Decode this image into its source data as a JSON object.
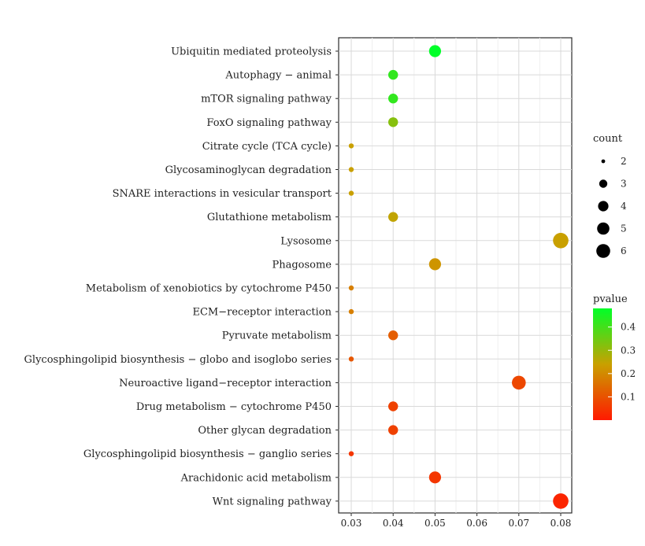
{
  "chart_data": {
    "type": "scatter",
    "title": "",
    "xlabel": "",
    "ylabel": "",
    "xlim": [
      0.03,
      0.08
    ],
    "x_ticks": [
      0.03,
      0.04,
      0.05,
      0.06,
      0.07,
      0.08
    ],
    "x_tick_labels": [
      "0.03",
      "0.04",
      "0.05",
      "0.06",
      "0.07",
      "0.08"
    ],
    "grid": true,
    "categories": [
      "Ubiquitin mediated proteolysis",
      "Autophagy − animal",
      "mTOR signaling pathway",
      "FoxO signaling pathway",
      "Citrate cycle (TCA cycle)",
      "Glycosaminoglycan degradation",
      "SNARE interactions in vesicular transport",
      "Glutathione metabolism",
      "Lysosome",
      "Phagosome",
      "Metabolism of xenobiotics by cytochrome P450",
      "ECM−receptor interaction",
      "Pyruvate metabolism",
      "Glycosphingolipid biosynthesis − globo and isoglobo series",
      "Neuroactive ligand−receptor interaction",
      "Drug metabolism − cytochrome P450",
      "Other glycan degradation",
      "Glycosphingolipid biosynthesis − ganglio series",
      "Arachidonic acid metabolism",
      "Wnt signaling pathway"
    ],
    "points": [
      {
        "category": "Ubiquitin mediated proteolysis",
        "x": 0.05,
        "count": 4,
        "pvalue": 0.48
      },
      {
        "category": "Autophagy − animal",
        "x": 0.04,
        "count": 3,
        "pvalue": 0.42
      },
      {
        "category": "mTOR signaling pathway",
        "x": 0.04,
        "count": 3,
        "pvalue": 0.42
      },
      {
        "category": "FoxO signaling pathway",
        "x": 0.04,
        "count": 3,
        "pvalue": 0.32
      },
      {
        "category": "Citrate cycle (TCA cycle)",
        "x": 0.03,
        "count": 2,
        "pvalue": 0.24
      },
      {
        "category": "Glycosaminoglycan degradation",
        "x": 0.03,
        "count": 2,
        "pvalue": 0.24
      },
      {
        "category": "SNARE interactions in vesicular transport",
        "x": 0.03,
        "count": 2,
        "pvalue": 0.24
      },
      {
        "category": "Glutathione metabolism",
        "x": 0.04,
        "count": 3,
        "pvalue": 0.25
      },
      {
        "category": "Lysosome",
        "x": 0.08,
        "count": 6,
        "pvalue": 0.24
      },
      {
        "category": "Phagosome",
        "x": 0.05,
        "count": 4,
        "pvalue": 0.22
      },
      {
        "category": "Metabolism of xenobiotics by cytochrome P450",
        "x": 0.03,
        "count": 2,
        "pvalue": 0.18
      },
      {
        "category": "ECM−receptor interaction",
        "x": 0.03,
        "count": 2,
        "pvalue": 0.18
      },
      {
        "category": "Pyruvate metabolism",
        "x": 0.04,
        "count": 3,
        "pvalue": 0.12
      },
      {
        "category": "Glycosphingolipid biosynthesis − globo and isoglobo series",
        "x": 0.03,
        "count": 2,
        "pvalue": 0.11
      },
      {
        "category": "Neuroactive ligand−receptor interaction",
        "x": 0.07,
        "count": 5,
        "pvalue": 0.08
      },
      {
        "category": "Drug metabolism − cytochrome P450",
        "x": 0.04,
        "count": 3,
        "pvalue": 0.07
      },
      {
        "category": "Other glycan degradation",
        "x": 0.04,
        "count": 3,
        "pvalue": 0.07
      },
      {
        "category": "Glycosphingolipid biosynthesis − ganglio series",
        "x": 0.03,
        "count": 2,
        "pvalue": 0.05
      },
      {
        "category": "Arachidonic acid metabolism",
        "x": 0.05,
        "count": 4,
        "pvalue": 0.05
      },
      {
        "category": "Wnt signaling pathway",
        "x": 0.08,
        "count": 6,
        "pvalue": 0.02
      }
    ],
    "count_legend": {
      "title": "count",
      "values": [
        2,
        3,
        4,
        5,
        6
      ],
      "labels": [
        "2",
        "3",
        "4",
        "5",
        "6"
      ]
    },
    "pvalue_legend": {
      "title": "pvalue",
      "range": [
        0.0,
        0.48
      ],
      "ticks": [
        0.1,
        0.2,
        0.3,
        0.4
      ],
      "tick_labels": [
        "0.1",
        "0.2",
        "0.3",
        "0.4"
      ],
      "low_color": "#ff1a00",
      "mid_color": "#c9a000",
      "high_color": "#00ff28"
    }
  }
}
